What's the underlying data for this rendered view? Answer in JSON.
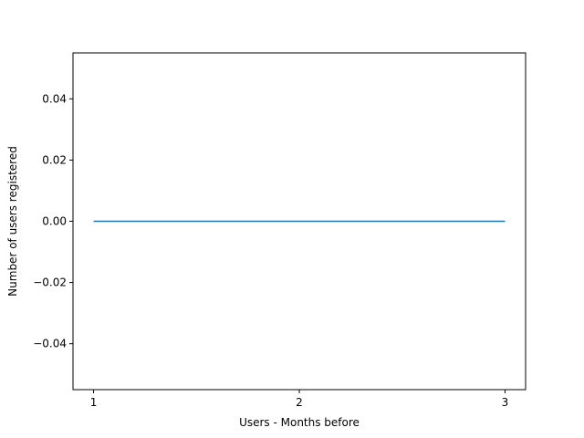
{
  "chart_data": {
    "type": "line",
    "title": "",
    "xlabel": "Users - Months before",
    "ylabel": "Number of users registered",
    "x": [
      1,
      2,
      3
    ],
    "series": [
      {
        "values": [
          0,
          0,
          0
        ],
        "color": "#1f77b4"
      }
    ],
    "xlim": [
      0.9,
      3.1
    ],
    "ylim": [
      -0.055,
      0.055
    ],
    "xticks": [
      1,
      2,
      3
    ],
    "xtick_labels": [
      "1",
      "2",
      "3"
    ],
    "yticks": [
      -0.04,
      -0.02,
      0.0,
      0.02,
      0.04
    ],
    "ytick_labels": [
      "−0.04",
      "−0.02",
      "0.00",
      "0.02",
      "0.04"
    ],
    "grid": false,
    "legend": "none"
  }
}
